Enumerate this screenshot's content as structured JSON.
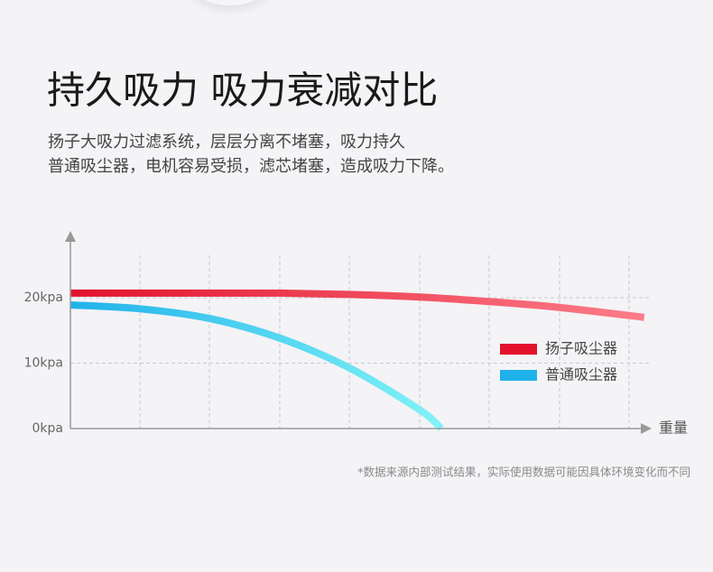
{
  "header": {
    "title": "持久吸力 吸力衰减对比",
    "subtitle": [
      "扬子大吸力过滤系统，层层分离不堵塞，吸力持久",
      "普通吸尘器，电机容易受损，滤芯堵塞，造成吸力下降。"
    ]
  },
  "chart_data": {
    "type": "line",
    "x_label": "重量",
    "xlim": [
      0,
      8.5
    ],
    "ylim": [
      0,
      30
    ],
    "yticks": [
      {
        "value": 0,
        "label": "0kpa"
      },
      {
        "value": 10,
        "label": "10kpa"
      },
      {
        "value": 20,
        "label": "20kpa"
      }
    ],
    "grid": true,
    "legend": "right",
    "series": [
      {
        "name": "扬子吸尘器",
        "color": "#e2122c",
        "end_color": "#fc7d89",
        "x": [
          0,
          1,
          2,
          3,
          4,
          5,
          6,
          7,
          8.2
        ],
        "values": [
          20.7,
          20.7,
          20.7,
          20.7,
          20.5,
          20.1,
          19.4,
          18.5,
          17.0
        ]
      },
      {
        "name": "普通吸尘器",
        "color": "#1fb2ea",
        "end_color": "#82f3f6",
        "x": [
          0,
          1,
          2,
          3,
          4,
          5,
          5.3
        ],
        "values": [
          18.9,
          18.3,
          16.8,
          13.8,
          9.2,
          2.8,
          0
        ]
      }
    ]
  },
  "footnote": "*数据来源内部测试结果，实际使用数据可能因具体环境变化而不同"
}
